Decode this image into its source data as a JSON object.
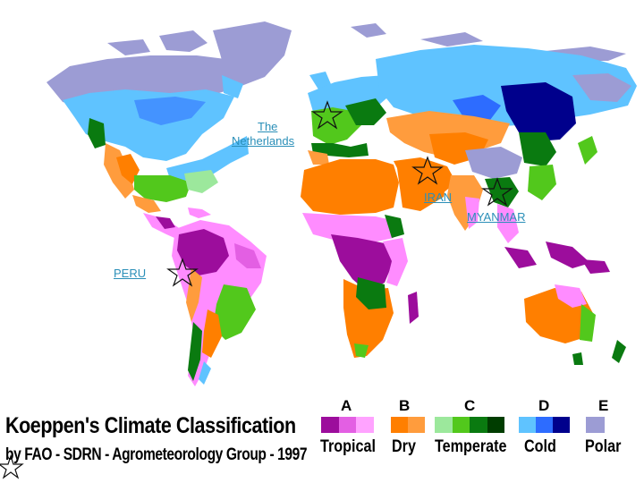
{
  "map": {
    "labels": {
      "netherlands_line1": "The",
      "netherlands_line2": "Netherlands",
      "iran": "IRAN",
      "myanmar": "MYANMAR",
      "peru": "PERU"
    }
  },
  "legend": {
    "title": "Koeppen's Climate Classification",
    "subtitle": "by FAO - SDRN - Agrometeorology Group - 1997",
    "classes": [
      {
        "letter": "A",
        "name": "Tropical",
        "colors": [
          "#9c0d9c",
          "#e35fe3",
          "#ffa3ff"
        ]
      },
      {
        "letter": "B",
        "name": "Dry",
        "colors": [
          "#ff7f00",
          "#ff9c3d"
        ]
      },
      {
        "letter": "C",
        "name": "Temperate",
        "colors": [
          "#9ce89c",
          "#52c81c",
          "#0a7a10",
          "#003d00"
        ]
      },
      {
        "letter": "D",
        "name": "Cold",
        "colors": [
          "#5fc3ff",
          "#2d6cff",
          "#00008c"
        ]
      },
      {
        "letter": "E",
        "name": "Polar",
        "colors": [
          "#9c9cd4"
        ]
      }
    ]
  },
  "colors": {
    "link": "#2a8fb8",
    "tropical_dark": "#9c0d9c",
    "tropical_pink": "#ff8cff",
    "dry": "#ff7f00",
    "dry_light": "#ff9c3d",
    "temperate_light": "#9ce89c",
    "temperate": "#52c81c",
    "temperate_dark": "#0a7a10",
    "cold_light": "#5fc3ff",
    "cold_blue": "#2d6cff",
    "cold_dark": "#00008c",
    "polar": "#9c9cd4"
  },
  "icons": [
    "star-marker-icon"
  ]
}
